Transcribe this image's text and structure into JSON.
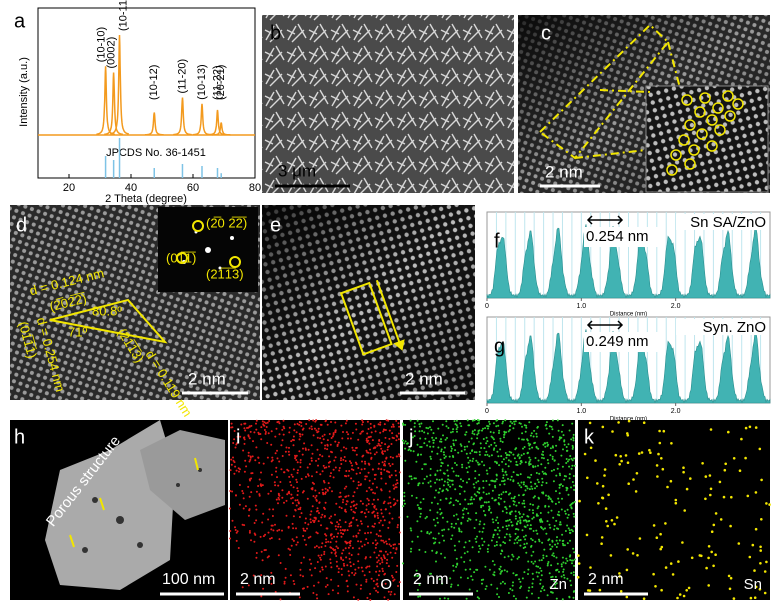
{
  "panels": {
    "a": {
      "label": "a",
      "ylabel": "Intensity (a.u.)",
      "xlabel": "2 Theta (degree)",
      "xlim": [
        10,
        80
      ],
      "xticks": [
        20,
        40,
        60,
        80
      ],
      "reference": "JPCDS No. 36-1451",
      "peaks": [
        {
          "label": "(10-10)",
          "position": 31.8,
          "intensity": 0.55,
          "ref_intensity": 0.55
        },
        {
          "label": "(0002)",
          "position": 34.4,
          "intensity": 0.5,
          "ref_intensity": 0.45
        },
        {
          "label": "(10-11)",
          "position": 36.3,
          "intensity": 0.8,
          "ref_intensity": 1.0
        },
        {
          "label": "(10-12)",
          "position": 47.5,
          "intensity": 0.18,
          "ref_intensity": 0.25
        },
        {
          "label": "(11-20)",
          "position": 56.6,
          "intensity": 0.3,
          "ref_intensity": 0.35
        },
        {
          "label": "(10-13)",
          "position": 62.9,
          "intensity": 0.25,
          "ref_intensity": 0.3
        },
        {
          "label": "(11-22)",
          "position": 67.9,
          "intensity": 0.2,
          "ref_intensity": 0.25
        },
        {
          "label": "(20-21)",
          "position": 69.1,
          "intensity": 0.1,
          "ref_intensity": 0.12
        }
      ]
    },
    "b": {
      "label": "b",
      "scale_bar": "3 μm"
    },
    "c": {
      "label": "c",
      "scale_bar": "2 nm"
    },
    "d": {
      "label": "d",
      "scale_bar": "2 nm",
      "annotations": [
        "(2̅0 2̅2̅)",
        "(01̅1̅)",
        "(21̅1̅3)",
        "d = 0.124 nm",
        "(2̅02̅2̅)",
        "80.8º",
        "71º",
        "d = 0.254 nm",
        "(01̅1̅1)",
        "(21̅1̅3)",
        "d = 0.119 nm"
      ]
    },
    "e": {
      "label": "e",
      "scale_bar": "2 nm"
    },
    "f": {
      "label": "f",
      "sample": "Sn SA/ZnO",
      "spacing": "0.254 nm",
      "xlabel": "Distance (nm)",
      "xlim": [
        0,
        3
      ],
      "xticks": [
        0,
        {
          "value": 1,
          "label": "1.0"
        },
        {
          "value": 2,
          "label": "2.0"
        }
      ]
    },
    "g": {
      "label": "g",
      "sample": "Syn. ZnO",
      "spacing": "0.249 nm",
      "xlabel": "Distance (nm)",
      "xlim": [
        0,
        3
      ],
      "xticks": [
        0,
        {
          "value": 1,
          "label": "1.0"
        },
        {
          "value": 2,
          "label": "2.0"
        }
      ]
    },
    "h": {
      "label": "h",
      "annotation": "Porous structure",
      "scale_bar": "100 nm"
    },
    "i": {
      "label": "i",
      "scale_bar": "2 nm",
      "element": "O"
    },
    "j": {
      "label": "j",
      "scale_bar": "2 nm",
      "element": "Zn"
    },
    "k": {
      "label": "k",
      "scale_bar": "2 nm",
      "element": "Sn"
    }
  }
}
